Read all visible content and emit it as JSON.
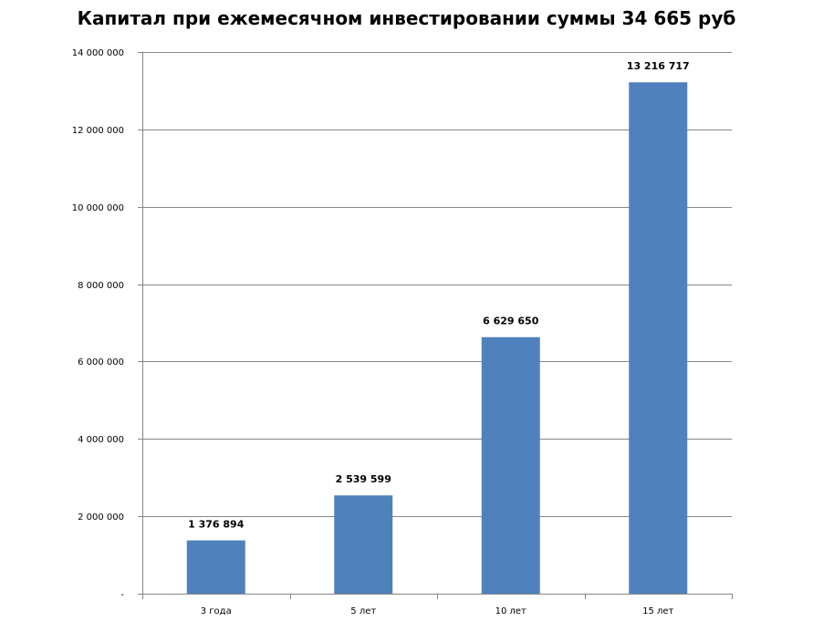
{
  "chart_data": {
    "type": "bar",
    "title": "Капитал при ежемесячном инвестировании суммы 34 665 руб",
    "categories": [
      "3 года",
      "5 лет",
      "10 лет",
      "15 лет"
    ],
    "values": [
      1376894,
      2539599,
      6629650,
      13216717
    ],
    "data_labels": [
      "1 376 894",
      "2 539 599",
      "6 629 650",
      "13 216 717"
    ],
    "ylim": [
      0,
      14000000
    ],
    "y_ticks": [
      0,
      2000000,
      4000000,
      6000000,
      8000000,
      10000000,
      12000000,
      14000000
    ],
    "y_tick_labels": [
      "-",
      "2 000 000",
      "4 000 000",
      "6 000 000",
      "8 000 000",
      "10 000 000",
      "12 000 000",
      "14 000 000"
    ],
    "grid": true,
    "legend": "none",
    "bar_color": "#4F81BD",
    "grid_color": "#868686"
  }
}
